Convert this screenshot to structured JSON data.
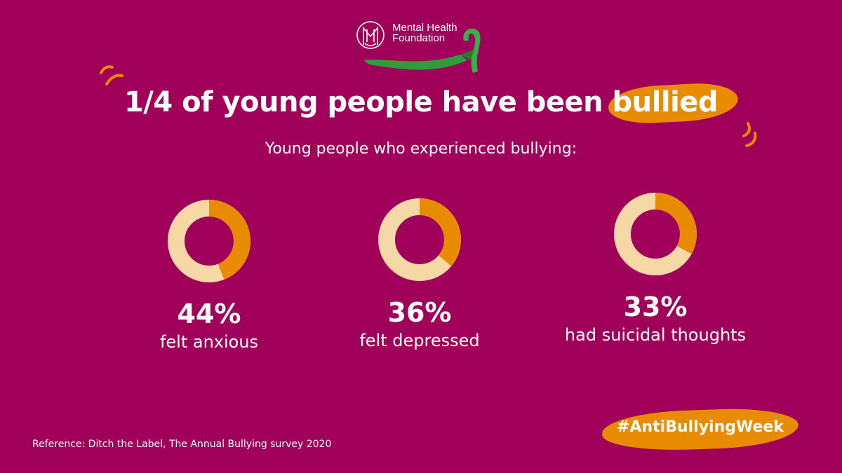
{
  "brand": {
    "name_line1": "Mental Health",
    "name_line2": "Foundation"
  },
  "headline": {
    "prefix": "1/4 of young people have been ",
    "highlight": "bullied"
  },
  "subtitle": "Young people who experienced bullying:",
  "chart_data": {
    "type": "donut",
    "title": "1/4 of young people have been bullied",
    "subtitle": "Young people who experienced bullying:",
    "unit": "%",
    "items": [
      {
        "label": "felt anxious",
        "value": 44,
        "display": "44%"
      },
      {
        "label": "felt depressed",
        "value": 36,
        "display": "36%"
      },
      {
        "label": "had suicidal thoughts",
        "value": 33,
        "display": "33%"
      }
    ]
  },
  "hashtag": "#AntiBullyingWeek",
  "reference": "Reference: Ditch the Label, The Annual Bullying survey 2020",
  "colors": {
    "background": "#a1005a",
    "accent": "#e98b00",
    "ring_track": "#f6d7a6",
    "ribbon": "#2e9e3a",
    "text": "#ffffff"
  },
  "icons": [
    "mental-health-foundation-logo",
    "green-awareness-ribbon",
    "decorative-squiggle"
  ]
}
